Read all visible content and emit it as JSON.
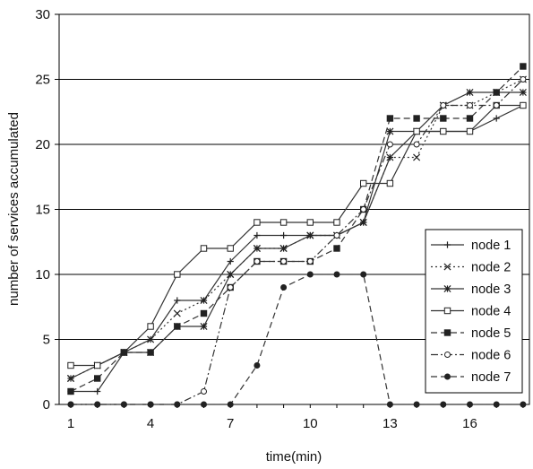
{
  "chart_data": {
    "type": "line",
    "xlabel": "time(min)",
    "ylabel": "number of services accumulated",
    "xlim": [
      1,
      18
    ],
    "ylim": [
      0,
      30
    ],
    "xticks": [
      1,
      4,
      7,
      10,
      13,
      16
    ],
    "yticks": [
      0,
      5,
      10,
      15,
      20,
      25,
      30
    ],
    "grid": "horizontal",
    "legend_position": "bottom-right",
    "x": [
      1,
      2,
      3,
      4,
      5,
      6,
      7,
      8,
      9,
      10,
      11,
      12,
      13,
      14,
      15,
      16,
      17,
      18
    ],
    "series": [
      {
        "name": "node 1",
        "marker": "plus",
        "dash": "solid",
        "values": [
          1,
          1,
          4,
          5,
          8,
          8,
          11,
          13,
          13,
          13,
          13,
          14,
          19,
          21,
          21,
          21,
          22,
          23
        ]
      },
      {
        "name": "node 2",
        "marker": "x",
        "dash": "dotted",
        "values": [
          2,
          3,
          4,
          5,
          7,
          8,
          10,
          12,
          12,
          13,
          13,
          14,
          19,
          19,
          23,
          23,
          24,
          25
        ]
      },
      {
        "name": "node 3",
        "marker": "star",
        "dash": "solid",
        "values": [
          2,
          3,
          4,
          4,
          6,
          6,
          10,
          12,
          12,
          13,
          13,
          14,
          21,
          21,
          23,
          24,
          24,
          24
        ]
      },
      {
        "name": "node 4",
        "marker": "square-open",
        "dash": "solid",
        "values": [
          3,
          3,
          4,
          6,
          10,
          12,
          12,
          14,
          14,
          14,
          14,
          17,
          17,
          21,
          21,
          21,
          23,
          23
        ]
      },
      {
        "name": "node 5",
        "marker": "square-filled",
        "dash": "dashed",
        "values": [
          1,
          2,
          4,
          4,
          6,
          7,
          9,
          11,
          11,
          11,
          12,
          15,
          22,
          22,
          22,
          22,
          24,
          26
        ]
      },
      {
        "name": "node 6",
        "marker": "circle-open",
        "dash": "dashdot",
        "values": [
          0,
          0,
          0,
          0,
          0,
          1,
          9,
          11,
          11,
          11,
          13,
          15,
          20,
          20,
          23,
          23,
          23,
          25
        ]
      },
      {
        "name": "node 7",
        "marker": "circle-filled",
        "dash": "dashed",
        "values": [
          0,
          0,
          0,
          0,
          0,
          0,
          0,
          3,
          9,
          10,
          10,
          10,
          0,
          0,
          0,
          0,
          0,
          0
        ]
      }
    ]
  }
}
